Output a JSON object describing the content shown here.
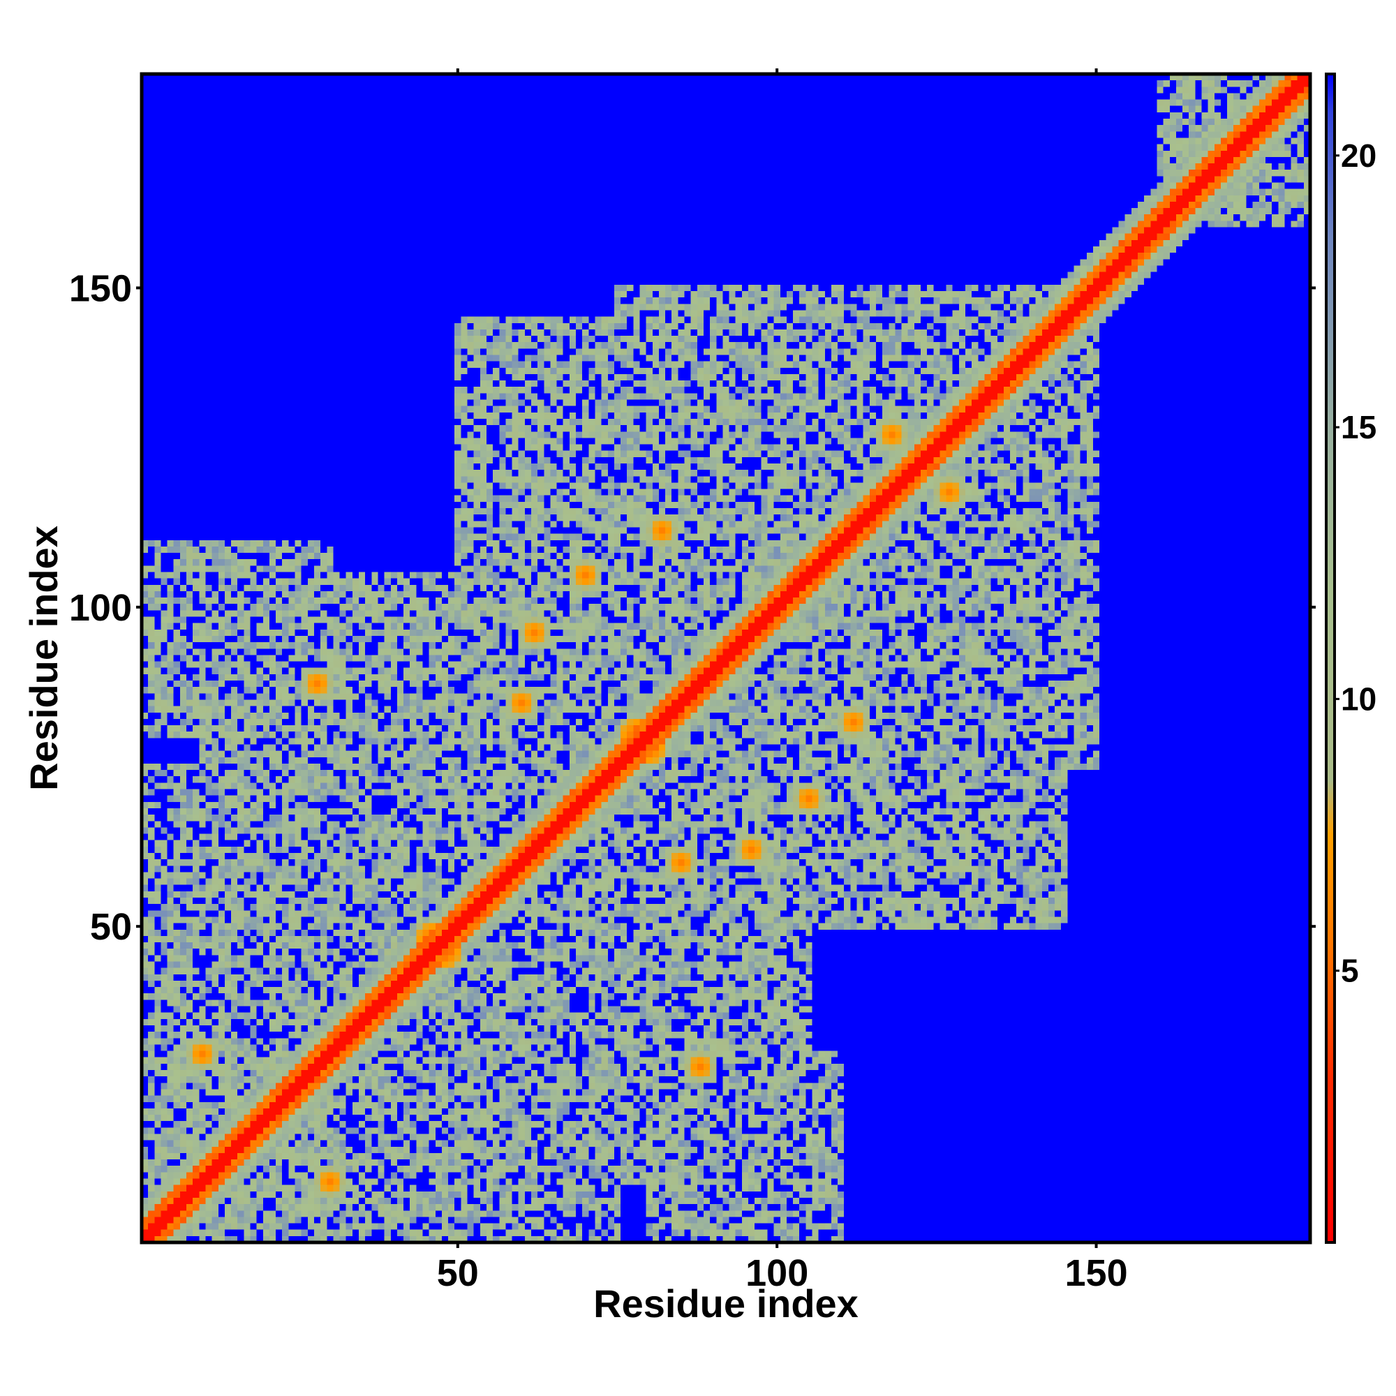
{
  "chart_data": {
    "type": "heatmap",
    "title": "",
    "xlabel": "Residue index",
    "ylabel": "Residue index",
    "xlim": [
      0.5,
      183.5
    ],
    "ylim": [
      0.5,
      183.5
    ],
    "n_residues": 183,
    "x_ticks": [
      50,
      100,
      150
    ],
    "y_ticks": [
      50,
      100,
      150
    ],
    "x_tick_labels": [
      "50",
      "100",
      "150"
    ],
    "y_tick_labels": [
      "50",
      "100",
      "150"
    ],
    "colorbar": {
      "range": [
        0,
        21.5
      ],
      "ticks": [
        5,
        10,
        15,
        20
      ],
      "tick_labels": [
        "5",
        "10",
        "15",
        "20"
      ],
      "stops": [
        {
          "value": 0,
          "color": "#ff0000"
        },
        {
          "value": 3,
          "color": "#ff2a00"
        },
        {
          "value": 5.5,
          "color": "#ff7700"
        },
        {
          "value": 7.5,
          "color": "#ffa000"
        },
        {
          "value": 8.5,
          "color": "#aabb88"
        },
        {
          "value": 12,
          "color": "#a9c08e"
        },
        {
          "value": 15,
          "color": "#98b0a0"
        },
        {
          "value": 18.5,
          "color": "#6f86c0"
        },
        {
          "value": 20.8,
          "color": "#3344dd"
        },
        {
          "value": 21.5,
          "color": "#0000ff"
        }
      ]
    },
    "structure_regions": [
      {
        "x": [
          1,
          75
        ],
        "y": [
          1,
          75
        ],
        "cutoff": 16
      },
      {
        "x": [
          30,
          105
        ],
        "y": [
          30,
          105
        ],
        "cutoff": 16
      },
      {
        "x": [
          50,
          145
        ],
        "y": [
          50,
          145
        ],
        "cutoff": 16
      },
      {
        "x": [
          75,
          150
        ],
        "y": [
          95,
          150
        ],
        "cutoff": 17
      },
      {
        "x": [
          10,
          55
        ],
        "y": [
          60,
          105
        ],
        "cutoff": 17
      },
      {
        "x": [
          100,
          145
        ],
        "y": [
          60,
          90
        ],
        "cutoff": 17
      },
      {
        "x": [
          80,
          110
        ],
        "y": [
          1,
          30
        ],
        "cutoff": 17
      },
      {
        "x": [
          160,
          183
        ],
        "y": [
          160,
          183
        ],
        "cutoff": 16
      }
    ],
    "contact_hotspots": [
      {
        "x": 6,
        "y": 6,
        "value": 5
      },
      {
        "x": 46,
        "y": 48,
        "value": 5
      },
      {
        "x": 78,
        "y": 80,
        "value": 5
      },
      {
        "x": 113,
        "y": 113,
        "value": 5
      },
      {
        "x": 180,
        "y": 180,
        "value": 5
      },
      {
        "x": 62,
        "y": 96,
        "value": 6
      },
      {
        "x": 112,
        "y": 82,
        "value": 6
      },
      {
        "x": 127,
        "y": 118,
        "value": 6
      },
      {
        "x": 28,
        "y": 88,
        "value": 6
      },
      {
        "x": 30,
        "y": 10,
        "value": 6
      },
      {
        "x": 105,
        "y": 70,
        "value": 6
      },
      {
        "x": 85,
        "y": 60,
        "value": 6
      }
    ]
  }
}
